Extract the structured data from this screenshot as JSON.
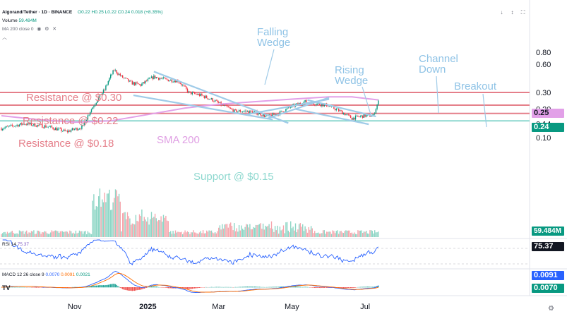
{
  "header": {
    "symbol": "Algorand/Tether · 1D · BINANCE",
    "ohlc": "O0.22 H0.25 L0.22 C0.24 0.018 (+8.35%)",
    "volume_label": "Volume",
    "volume_value": "59.484M",
    "ma_label": "MA 200 close 0",
    "rsi_label": "RSI 14",
    "rsi_value": "75.37",
    "macd_label": "MACD 12 26 close 9",
    "macd_v1": "0.0070",
    "macd_v2": "0.0091",
    "macd_v3": "0.0021",
    "tv_logo": "TV"
  },
  "toolbar": {
    "down_icon": "↓",
    "arrow_icon": "↕",
    "expand_icon": "⛶"
  },
  "annotations": {
    "falling_wedge": [
      "Falling",
      "Wedge"
    ],
    "rising_wedge": [
      "Rising",
      "Wedge"
    ],
    "channel_down": [
      "Channel",
      "Down"
    ],
    "breakout": "Breakout",
    "res30": "Resistance @ $0.30",
    "res22": "Resistance @ $0.22",
    "res18": "Resistance @ $0.18",
    "sma": "SMA 200",
    "support": "Support @ $0.15"
  },
  "badges": {
    "ma": "0.25",
    "price": "0.24",
    "volume": "59.484M",
    "rsi": "75.37",
    "macd_signal": "0.0091",
    "macd_line": "0.0070"
  },
  "colors": {
    "up": "#089981",
    "down": "#f23645",
    "ma": "#e2a0e8",
    "resistance": "#e57f8a",
    "support": "#8ed8cf",
    "pattern": "#9fcbe8",
    "rsi": "#2962ff",
    "macd": "#2962ff",
    "signal": "#ff6d00"
  },
  "chart_data": {
    "type": "candlestick",
    "timeframe": "1D",
    "y_scale": "log",
    "y_ticks": [
      "0.80",
      "0.60",
      "0.30",
      "0.20",
      "0.14",
      "0.10"
    ],
    "x_ticks": [
      "Nov",
      "2025",
      "Mar",
      "May",
      "Jul"
    ],
    "horizontal_levels": [
      {
        "label": "Resistance @ $0.30",
        "price": 0.3
      },
      {
        "label": "Resistance @ $0.22",
        "price": 0.22
      },
      {
        "label": "Resistance @ $0.18",
        "price": 0.18
      },
      {
        "label": "Support @ $0.15",
        "price": 0.15
      }
    ],
    "price_path": [
      [
        "2024-09-01",
        0.125
      ],
      [
        "2024-09-20",
        0.14
      ],
      [
        "2024-10-10",
        0.13
      ],
      [
        "2024-10-25",
        0.115
      ],
      [
        "2024-11-08",
        0.13
      ],
      [
        "2024-11-18",
        0.23
      ],
      [
        "2024-11-26",
        0.32
      ],
      [
        "2024-12-04",
        0.52
      ],
      [
        "2024-12-10",
        0.44
      ],
      [
        "2024-12-18",
        0.38
      ],
      [
        "2024-12-26",
        0.36
      ],
      [
        "2025-01-06",
        0.44
      ],
      [
        "2025-01-16",
        0.41
      ],
      [
        "2025-01-26",
        0.4
      ],
      [
        "2025-02-04",
        0.3
      ],
      [
        "2025-02-14",
        0.28
      ],
      [
        "2025-02-24",
        0.25
      ],
      [
        "2025-03-04",
        0.22
      ],
      [
        "2025-03-14",
        0.19
      ],
      [
        "2025-03-24",
        0.19
      ],
      [
        "2025-04-04",
        0.18
      ],
      [
        "2025-04-10",
        0.165
      ],
      [
        "2025-04-20",
        0.18
      ],
      [
        "2025-04-30",
        0.21
      ],
      [
        "2025-05-12",
        0.24
      ],
      [
        "2025-05-20",
        0.23
      ],
      [
        "2025-05-30",
        0.22
      ],
      [
        "2025-06-10",
        0.19
      ],
      [
        "2025-06-20",
        0.16
      ],
      [
        "2025-06-30",
        0.17
      ],
      [
        "2025-07-08",
        0.17
      ],
      [
        "2025-07-12",
        0.24
      ]
    ],
    "ma200_path": [
      [
        "2024-09-01",
        0.17
      ],
      [
        "2024-10-01",
        0.155
      ],
      [
        "2024-11-01",
        0.145
      ],
      [
        "2024-12-01",
        0.15
      ],
      [
        "2025-01-01",
        0.175
      ],
      [
        "2025-02-01",
        0.205
      ],
      [
        "2025-03-01",
        0.225
      ],
      [
        "2025-04-01",
        0.24
      ],
      [
        "2025-05-01",
        0.255
      ],
      [
        "2025-06-01",
        0.27
      ],
      [
        "2025-06-20",
        0.27
      ],
      [
        "2025-07-12",
        0.25
      ]
    ],
    "rsi": {
      "period": 14,
      "last": 75.37
    },
    "macd": {
      "fast": 12,
      "slow": 26,
      "signal": 9,
      "macd": 0.007,
      "signal_value": 0.0091,
      "histogram": 0.0021
    }
  }
}
